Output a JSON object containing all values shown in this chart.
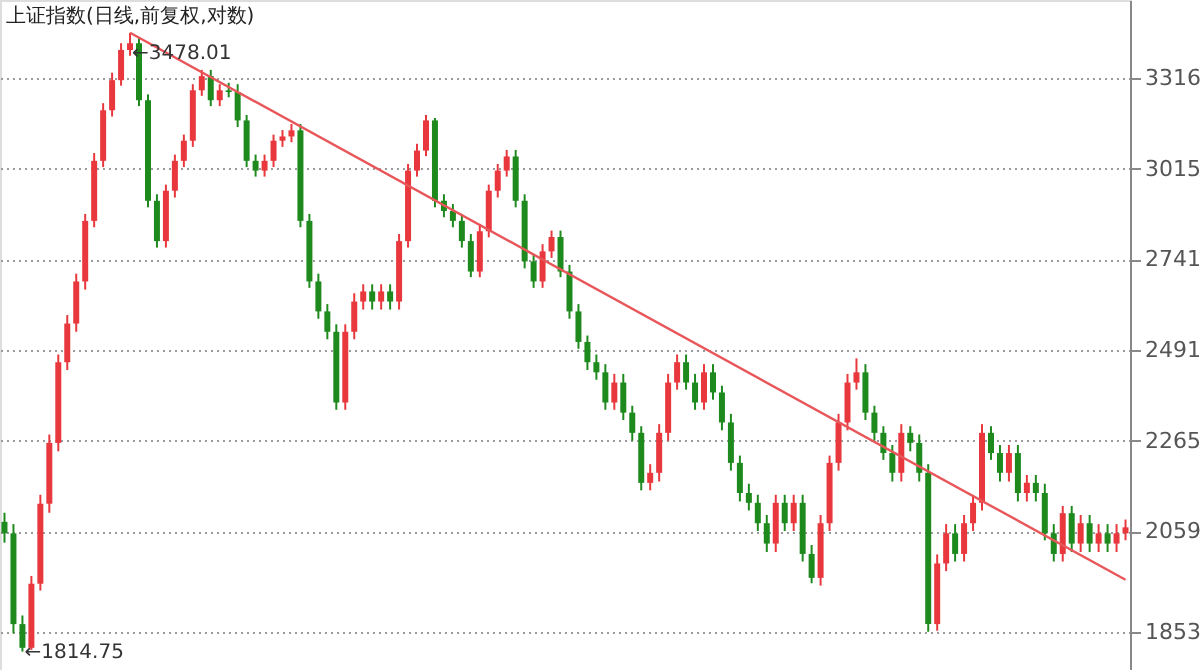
{
  "chart_data": {
    "type": "candlestick",
    "title": "上证指数(日线,前复权,对数)",
    "categories": [
      null,
      null,
      null,
      null,
      null,
      null,
      null,
      null,
      null,
      null,
      null,
      null,
      null,
      null,
      null,
      null,
      null,
      null,
      null,
      null,
      null,
      null,
      null,
      null,
      null,
      null,
      null,
      null,
      null,
      null,
      null,
      null,
      null,
      null,
      null,
      null,
      null,
      null,
      null,
      null,
      null,
      null,
      null,
      null,
      null,
      null,
      null,
      null,
      null,
      null,
      null,
      null,
      null,
      null,
      null,
      null,
      null,
      null,
      null,
      null,
      null,
      null,
      null,
      null,
      null,
      null,
      null,
      null,
      null,
      null,
      null,
      null,
      null,
      null,
      null,
      null,
      null,
      null,
      null,
      null,
      null,
      null,
      null,
      null,
      null,
      null,
      null,
      null,
      null,
      null,
      null,
      null,
      null,
      null,
      null,
      null,
      null,
      null,
      null,
      null,
      null,
      null,
      null,
      null,
      null,
      null,
      null,
      null,
      null,
      null,
      null,
      null,
      null,
      null,
      null,
      null,
      null,
      null,
      null,
      null,
      null,
      null,
      null,
      null,
      null,
      null
    ],
    "ohlc": [
      [
        2080,
        2100,
        2035,
        2055
      ],
      [
        2055,
        2075,
        1850,
        1868
      ],
      [
        1868,
        1885,
        1814.75,
        1822
      ],
      [
        1822,
        1965,
        1818,
        1949
      ],
      [
        1949,
        2140,
        1935,
        2120
      ],
      [
        2120,
        2280,
        2100,
        2260
      ],
      [
        2260,
        2480,
        2240,
        2460
      ],
      [
        2460,
        2585,
        2440,
        2562
      ],
      [
        2562,
        2700,
        2540,
        2678
      ],
      [
        2678,
        2875,
        2655,
        2854
      ],
      [
        2854,
        3065,
        2835,
        3040
      ],
      [
        3040,
        3230,
        3020,
        3206
      ],
      [
        3206,
        3335,
        3185,
        3309
      ],
      [
        3309,
        3440,
        3290,
        3416
      ],
      [
        3416,
        3478.01,
        3395,
        3440
      ],
      [
        3440,
        3460,
        3220,
        3240
      ],
      [
        3240,
        3260,
        2895,
        2915
      ],
      [
        2915,
        2935,
        2775,
        2794
      ],
      [
        2794,
        2965,
        2775,
        2946
      ],
      [
        2946,
        3060,
        2925,
        3040
      ],
      [
        3040,
        3125,
        3020,
        3105
      ],
      [
        3105,
        3295,
        3085,
        3274
      ],
      [
        3274,
        3345,
        3255,
        3323
      ],
      [
        3323,
        3345,
        3220,
        3240
      ],
      [
        3240,
        3295,
        3220,
        3274
      ],
      [
        3274,
        3300,
        3250,
        3268
      ],
      [
        3268,
        3295,
        3150,
        3172
      ],
      [
        3172,
        3190,
        3020,
        3040
      ],
      [
        3040,
        3060,
        2990,
        3009
      ],
      [
        3009,
        3060,
        2990,
        3040
      ],
      [
        3040,
        3125,
        3020,
        3105
      ],
      [
        3105,
        3140,
        3085,
        3119
      ],
      [
        3119,
        3160,
        3100,
        3139
      ],
      [
        3139,
        3160,
        2835,
        2854
      ],
      [
        2854,
        2875,
        2660,
        2678
      ],
      [
        2678,
        2700,
        2575,
        2595
      ],
      [
        2595,
        2615,
        2520,
        2540
      ],
      [
        2540,
        2560,
        2340,
        2358
      ],
      [
        2358,
        2560,
        2340,
        2540
      ],
      [
        2540,
        2645,
        2520,
        2622
      ],
      [
        2622,
        2670,
        2600,
        2650
      ],
      [
        2650,
        2670,
        2600,
        2622
      ],
      [
        2622,
        2670,
        2600,
        2650
      ],
      [
        2650,
        2670,
        2600,
        2622
      ],
      [
        2622,
        2815,
        2600,
        2794
      ],
      [
        2794,
        3030,
        2775,
        3009
      ],
      [
        3009,
        3095,
        2990,
        3073
      ],
      [
        3073,
        3190,
        3055,
        3172
      ],
      [
        3172,
        3180,
        2895,
        2915
      ],
      [
        2915,
        2935,
        2865,
        2884
      ],
      [
        2884,
        2905,
        2835,
        2854
      ],
      [
        2854,
        2875,
        2775,
        2794
      ],
      [
        2794,
        2815,
        2690,
        2706
      ],
      [
        2706,
        2845,
        2690,
        2823
      ],
      [
        2823,
        2965,
        2805,
        2946
      ],
      [
        2946,
        3030,
        2925,
        3009
      ],
      [
        3009,
        3075,
        2990,
        3054
      ],
      [
        3054,
        3075,
        2895,
        2915
      ],
      [
        2915,
        2935,
        2715,
        2735
      ],
      [
        2735,
        2755,
        2660,
        2678
      ],
      [
        2678,
        2785,
        2660,
        2764
      ],
      [
        2764,
        2825,
        2745,
        2806
      ],
      [
        2806,
        2825,
        2690,
        2706
      ],
      [
        2706,
        2725,
        2575,
        2595
      ],
      [
        2595,
        2615,
        2495,
        2513
      ],
      [
        2513,
        2530,
        2440,
        2460
      ],
      [
        2460,
        2480,
        2415,
        2434
      ],
      [
        2434,
        2455,
        2340,
        2358
      ],
      [
        2358,
        2430,
        2340,
        2408
      ],
      [
        2408,
        2430,
        2315,
        2333
      ],
      [
        2333,
        2350,
        2265,
        2284
      ],
      [
        2284,
        2300,
        2150,
        2167
      ],
      [
        2167,
        2210,
        2150,
        2190
      ],
      [
        2190,
        2305,
        2170,
        2284
      ],
      [
        2284,
        2430,
        2265,
        2408
      ],
      [
        2408,
        2480,
        2390,
        2460
      ],
      [
        2460,
        2480,
        2390,
        2408
      ],
      [
        2408,
        2430,
        2340,
        2358
      ],
      [
        2358,
        2455,
        2340,
        2434
      ],
      [
        2434,
        2455,
        2365,
        2383
      ],
      [
        2383,
        2400,
        2290,
        2309
      ],
      [
        2309,
        2330,
        2195,
        2213
      ],
      [
        2213,
        2230,
        2125,
        2144
      ],
      [
        2144,
        2165,
        2105,
        2122
      ],
      [
        2122,
        2140,
        2060,
        2077
      ],
      [
        2077,
        2095,
        2015,
        2033
      ],
      [
        2033,
        2140,
        2015,
        2122
      ],
      [
        2122,
        2140,
        2060,
        2077
      ],
      [
        2077,
        2140,
        2060,
        2122
      ],
      [
        2122,
        2140,
        1995,
        2011
      ],
      [
        2011,
        2030,
        1950,
        1961
      ],
      [
        1961,
        2095,
        1945,
        2077
      ],
      [
        2077,
        2230,
        2060,
        2213
      ],
      [
        2213,
        2330,
        2195,
        2309
      ],
      [
        2309,
        2430,
        2290,
        2408
      ],
      [
        2408,
        2470,
        2390,
        2434
      ],
      [
        2434,
        2455,
        2315,
        2333
      ],
      [
        2333,
        2350,
        2265,
        2284
      ],
      [
        2284,
        2300,
        2220,
        2236
      ],
      [
        2236,
        2255,
        2170,
        2190
      ],
      [
        2190,
        2305,
        2170,
        2284
      ],
      [
        2284,
        2300,
        2240,
        2260
      ],
      [
        2260,
        2280,
        2170,
        2190
      ],
      [
        2190,
        2210,
        1853,
        1868
      ],
      [
        1868,
        2010,
        1855,
        1991
      ],
      [
        1991,
        2075,
        1975,
        2055
      ],
      [
        2055,
        2075,
        1995,
        2011
      ],
      [
        2011,
        2095,
        1995,
        2077
      ],
      [
        2077,
        2140,
        2060,
        2122
      ],
      [
        2122,
        2305,
        2105,
        2284
      ],
      [
        2284,
        2300,
        2220,
        2236
      ],
      [
        2236,
        2255,
        2170,
        2190
      ],
      [
        2190,
        2255,
        2170,
        2236
      ],
      [
        2236,
        2255,
        2125,
        2144
      ],
      [
        2144,
        2185,
        2125,
        2167
      ],
      [
        2167,
        2185,
        2125,
        2144
      ],
      [
        2144,
        2165,
        2040,
        2055
      ],
      [
        2055,
        2075,
        1995,
        2011
      ],
      [
        2011,
        2115,
        1995,
        2099
      ],
      [
        2099,
        2115,
        2015,
        2033
      ],
      [
        2033,
        2095,
        2015,
        2077
      ],
      [
        2077,
        2095,
        2015,
        2033
      ],
      [
        2033,
        2075,
        2015,
        2055
      ],
      [
        2055,
        2075,
        2015,
        2033
      ],
      [
        2033,
        2075,
        2015,
        2055
      ],
      [
        2055,
        2085,
        2040,
        2068
      ]
    ],
    "series": [
      {
        "type": "line",
        "color": "#e8565a",
        "values": [
          null,
          null,
          null,
          null,
          null,
          null,
          null,
          null,
          null,
          null,
          null,
          null,
          null,
          null,
          3478.01,
          null,
          null,
          null,
          null,
          null,
          null,
          null,
          null,
          null,
          null,
          null,
          null,
          null,
          null,
          null,
          null,
          null,
          null,
          null,
          null,
          null,
          null,
          null,
          null,
          null,
          null,
          null,
          null,
          null,
          null,
          null,
          null,
          null,
          null,
          null,
          null,
          null,
          null,
          null,
          null,
          null,
          null,
          null,
          null,
          null,
          null,
          null,
          null,
          null,
          null,
          null,
          null,
          null,
          null,
          null,
          null,
          null,
          null,
          null,
          null,
          null,
          null,
          null,
          null,
          null,
          null,
          null,
          null,
          null,
          null,
          null,
          null,
          null,
          null,
          null,
          null,
          null,
          null,
          null,
          null,
          null,
          null,
          null,
          null,
          null,
          null,
          null,
          null,
          null,
          null,
          null,
          null,
          null,
          null,
          null,
          null,
          null,
          null,
          null,
          null,
          null,
          null,
          null,
          null,
          null,
          null,
          null,
          null,
          null,
          null,
          1957
        ]
      }
    ],
    "ylim": [
      1780,
      3600
    ],
    "yticks": [
      1853,
      2059,
      2265,
      2491,
      2741,
      3015,
      3316
    ],
    "log": true,
    "grid": "y",
    "tick_labels": "y",
    "annotations": [
      "←3478.01",
      "←1814.75"
    ]
  }
}
